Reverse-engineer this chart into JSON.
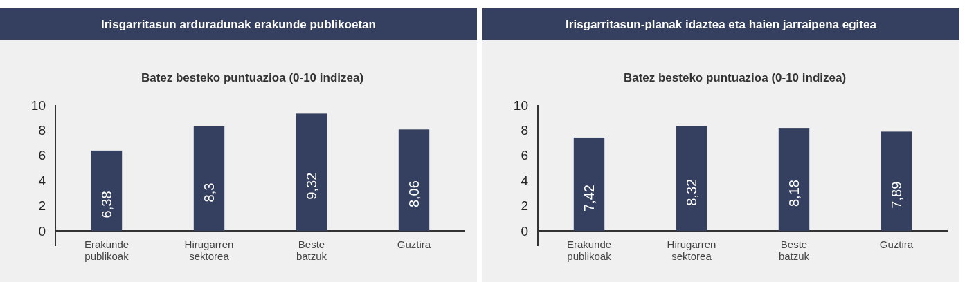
{
  "chart_data": [
    {
      "type": "bar",
      "title": "Irisgarritasun arduradunak erakunde publikoetan",
      "subtitle": "Batez besteko puntuazioa (0-10 indizea)",
      "categories": [
        "Erakunde publikoak",
        "Hirugarren sektorea",
        "Beste batzuk",
        "Guztira"
      ],
      "values": [
        6.38,
        8.3,
        9.32,
        8.06
      ],
      "color": "#354060",
      "ylim": [
        0,
        10
      ],
      "yticks": [
        0,
        2,
        4,
        6,
        8,
        10
      ],
      "data_labels": true,
      "value_labels": [
        "6,38",
        "8,3",
        "9,32",
        "8,06"
      ]
    },
    {
      "type": "bar",
      "title": "Irisgarritasun-planak idaztea eta haien jarraipena egitea",
      "subtitle": "Batez besteko puntuazioa (0-10 indizea)",
      "categories": [
        "Erakunde publikoak",
        "Hirugarren sektorea",
        "Beste batzuk",
        "Guztira"
      ],
      "values": [
        7.42,
        8.32,
        8.18,
        7.89
      ],
      "color": "#354060",
      "ylim": [
        0,
        10
      ],
      "yticks": [
        0,
        2,
        4,
        6,
        8,
        10
      ],
      "data_labels": true,
      "value_labels": [
        "7,42",
        "8,32",
        "8,18",
        "7,89"
      ]
    }
  ]
}
